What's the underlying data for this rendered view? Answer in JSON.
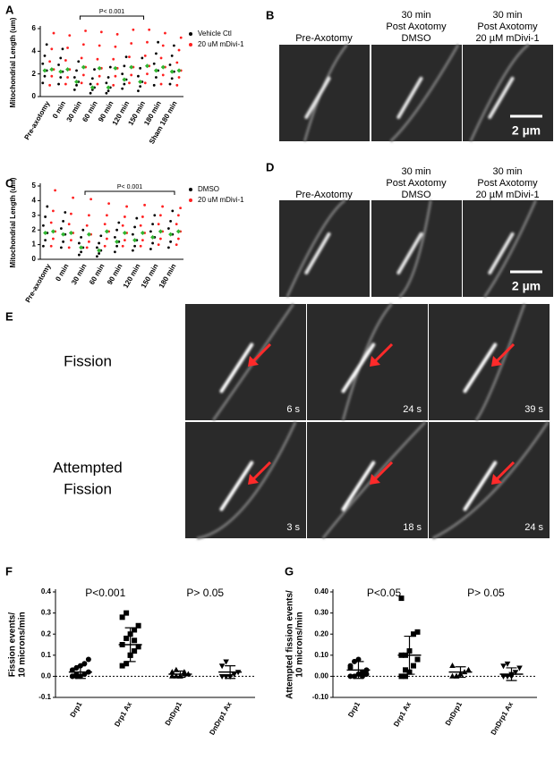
{
  "chart_data": [
    {
      "type": "dot",
      "label": "A",
      "ylabel": "Mitochondrial Length (um)",
      "ylim": [
        0,
        6
      ],
      "yticks": [
        0,
        2,
        4,
        6
      ],
      "categories": [
        "Pre-axotomy",
        "0 min",
        "30 min",
        "60 min",
        "90 min",
        "120 min",
        "150 min",
        "180 min",
        "Sham 180 min"
      ],
      "bracket_label": "P< 0.001",
      "series": [
        {
          "name": "Vehicle Ctl",
          "color": "#000000",
          "means": [
            2.3,
            2.2,
            1.3,
            0.8,
            0.8,
            1.5,
            1.3,
            2.3,
            2.2
          ],
          "values": [
            [
              1.2,
              1.8,
              2.3,
              2.9,
              3.6,
              4.6
            ],
            [
              1.1,
              1.7,
              2.2,
              2.8,
              3.4,
              4.2
            ],
            [
              0.6,
              1.0,
              1.3,
              1.7,
              2.3,
              3.1
            ],
            [
              0.3,
              0.6,
              0.8,
              1.1,
              1.6,
              2.4
            ],
            [
              0.3,
              0.5,
              0.8,
              1.2,
              1.7,
              2.6
            ],
            [
              0.7,
              1.1,
              1.5,
              2.0,
              2.7,
              3.5
            ],
            [
              0.5,
              0.9,
              1.3,
              1.8,
              2.5,
              3.4
            ],
            [
              1.0,
              1.7,
              2.3,
              2.9,
              3.8,
              4.8
            ],
            [
              1.1,
              1.6,
              2.2,
              2.8,
              3.6,
              4.5
            ]
          ]
        },
        {
          "name": "20 uM mDivi-1",
          "color": "#ff2020",
          "means": [
            2.4,
            2.4,
            2.6,
            2.5,
            2.5,
            2.6,
            2.7,
            2.6,
            2.3
          ],
          "values": [
            [
              1.0,
              1.8,
              2.4,
              3.1,
              4.2,
              5.6
            ],
            [
              1.1,
              1.7,
              2.4,
              3.2,
              4.3,
              5.4
            ],
            [
              1.2,
              1.9,
              2.6,
              3.4,
              4.6,
              5.8
            ],
            [
              1.1,
              1.8,
              2.5,
              3.3,
              4.5,
              5.7
            ],
            [
              1.0,
              1.8,
              2.5,
              3.3,
              4.4,
              5.5
            ],
            [
              1.2,
              1.9,
              2.6,
              3.5,
              4.7,
              5.9
            ],
            [
              1.2,
              2.0,
              2.7,
              3.6,
              4.8,
              5.9
            ],
            [
              1.1,
              1.9,
              2.6,
              3.4,
              4.5,
              5.6
            ],
            [
              1.0,
              1.7,
              2.3,
              3.0,
              4.1,
              5.2
            ]
          ]
        }
      ]
    },
    {
      "type": "dot",
      "label": "C",
      "ylabel": "Mitochondrial Length (um)",
      "ylim": [
        0,
        5
      ],
      "yticks": [
        0,
        1,
        2,
        3,
        4,
        5
      ],
      "categories": [
        "Pre-axotomy",
        "0 min",
        "30 min",
        "60 min",
        "90 min",
        "120 min",
        "150 min",
        "180 min"
      ],
      "bracket_label": "P< 0.001",
      "series": [
        {
          "name": "DMSO",
          "color": "#000000",
          "means": [
            1.8,
            1.7,
            0.8,
            0.6,
            1.2,
            1.3,
            1.5,
            1.7
          ],
          "values": [
            [
              0.9,
              1.3,
              1.8,
              2.3,
              2.9,
              3.6
            ],
            [
              0.8,
              1.2,
              1.7,
              2.1,
              2.6,
              3.2
            ],
            [
              0.3,
              0.5,
              0.8,
              1.1,
              1.5,
              2.0
            ],
            [
              0.2,
              0.4,
              0.6,
              0.8,
              1.1,
              1.6
            ],
            [
              0.5,
              0.9,
              1.2,
              1.5,
              2.0,
              2.5
            ],
            [
              0.6,
              0.9,
              1.3,
              1.7,
              2.2,
              2.8
            ],
            [
              0.7,
              1.1,
              1.5,
              1.9,
              2.4,
              3.0
            ],
            [
              0.8,
              1.2,
              1.7,
              2.1,
              2.6,
              3.3
            ]
          ]
        },
        {
          "name": "20 uM mDivi-1",
          "color": "#ff2020",
          "means": [
            1.9,
            1.8,
            1.7,
            1.9,
            1.8,
            1.8,
            1.9,
            1.9
          ],
          "values": [
            [
              0.9,
              1.4,
              1.9,
              2.5,
              3.3,
              4.7
            ],
            [
              0.8,
              1.3,
              1.8,
              2.4,
              3.1,
              4.2
            ],
            [
              0.8,
              1.2,
              1.7,
              2.3,
              3.0,
              4.1
            ],
            [
              0.9,
              1.4,
              1.9,
              2.4,
              3.0,
              3.8
            ],
            [
              0.9,
              1.3,
              1.8,
              2.3,
              2.9,
              3.6
            ],
            [
              0.9,
              1.3,
              1.8,
              2.3,
              2.9,
              3.7
            ],
            [
              1.0,
              1.4,
              1.9,
              2.4,
              3.0,
              3.6
            ],
            [
              1.0,
              1.4,
              1.9,
              2.4,
              3.0,
              3.5
            ]
          ]
        }
      ]
    },
    {
      "type": "scatter_sd",
      "label": "F",
      "ylabel_lines": [
        "Fission events/",
        "10 microns/min"
      ],
      "ylim": [
        -0.1,
        0.4
      ],
      "yticks": [
        -0.1,
        {
          "value": 0,
          "label": "0.0"
        },
        0.1,
        0.2,
        0.3,
        0.4
      ],
      "hline": 0,
      "annotations": [
        "P<0.001",
        "P> 0.05"
      ],
      "categories": [
        "Drp1",
        "Drp1 Ax",
        "DnDrp1",
        "DnDrp1 Ax"
      ],
      "markers": [
        "circle",
        "square",
        "triangle",
        "invtriangle"
      ],
      "values": [
        [
          0,
          0,
          0,
          0.01,
          0.02,
          0.03,
          0.04,
          0.05,
          0.06,
          0.08,
          0,
          0.01
        ],
        [
          0.05,
          0.06,
          0.1,
          0.12,
          0.14,
          0.15,
          0.18,
          0.2,
          0.22,
          0.24,
          0.28,
          0.3,
          0.1,
          0.17
        ],
        [
          0,
          0,
          0,
          0.01,
          0.01,
          0.02,
          0.03,
          0,
          0.02
        ],
        [
          0,
          0,
          0,
          0.01,
          0.02,
          0.05,
          0.07,
          0
        ]
      ],
      "means": [
        0.02,
        0.15,
        0.01,
        0.02
      ],
      "sds": [
        0.03,
        0.08,
        0.015,
        0.03
      ]
    },
    {
      "type": "scatter_sd",
      "label": "G",
      "ylabel_lines": [
        "Attempted fission events/",
        "10 microns/min"
      ],
      "ylim": [
        -0.1,
        0.4
      ],
      "yticks": [
        {
          "value": -0.1,
          "label": "-0.10"
        },
        {
          "value": 0,
          "label": "0.00"
        },
        {
          "value": 0.1,
          "label": "0.10"
        },
        {
          "value": 0.2,
          "label": "0.20"
        },
        {
          "value": 0.3,
          "label": "0.30"
        },
        {
          "value": 0.4,
          "label": "0.40"
        }
      ],
      "hline": 0,
      "annotations": [
        "P<0.05",
        "P> 0.05"
      ],
      "categories": [
        "Drp1",
        "Drp1 Ax",
        "DnDrp1",
        "DnDrp1 Ax"
      ],
      "markers": [
        "circle",
        "square",
        "triangle",
        "invtriangle"
      ],
      "values": [
        [
          0,
          0,
          0.01,
          0.02,
          0.03,
          0.05,
          0.07,
          0.08,
          0,
          0.01,
          0.04
        ],
        [
          0,
          0,
          0.02,
          0.05,
          0.08,
          0.1,
          0.1,
          0.12,
          0.2,
          0.21,
          0.37,
          0.03
        ],
        [
          0,
          0,
          0.01,
          0.02,
          0.03,
          0.05,
          0,
          0.01
        ],
        [
          0,
          0,
          0.01,
          0.02,
          0.04,
          0.05,
          0.06,
          0
        ]
      ],
      "means": [
        0.03,
        0.1,
        0.02,
        0.01
      ],
      "sds": [
        0.04,
        0.09,
        0.025,
        0.03
      ]
    }
  ],
  "panels": {
    "B": {
      "label": "B",
      "headers": [
        [
          "Pre-Axotomy"
        ],
        [
          "30 min",
          "Post Axotomy",
          "DMSO"
        ],
        [
          "30 min",
          "Post Axotomy",
          "20 µM mDivi-1"
        ]
      ],
      "scalebar": "2 µm"
    },
    "D": {
      "label": "D",
      "headers": [
        [
          "Pre-Axotomy"
        ],
        [
          "30 min",
          "Post Axotomy",
          "DMSO"
        ],
        [
          "30 min",
          "Post Axotomy",
          "20 µM mDivi-1"
        ]
      ],
      "scalebar": "2 µm"
    },
    "E": {
      "label": "E",
      "rows": [
        {
          "title": [
            "Fission"
          ],
          "times": [
            "6 s",
            "24 s",
            "39 s"
          ]
        },
        {
          "title": [
            "Attempted",
            "Fission"
          ],
          "times": [
            "3 s",
            "18 s",
            "24 s"
          ]
        }
      ]
    }
  }
}
